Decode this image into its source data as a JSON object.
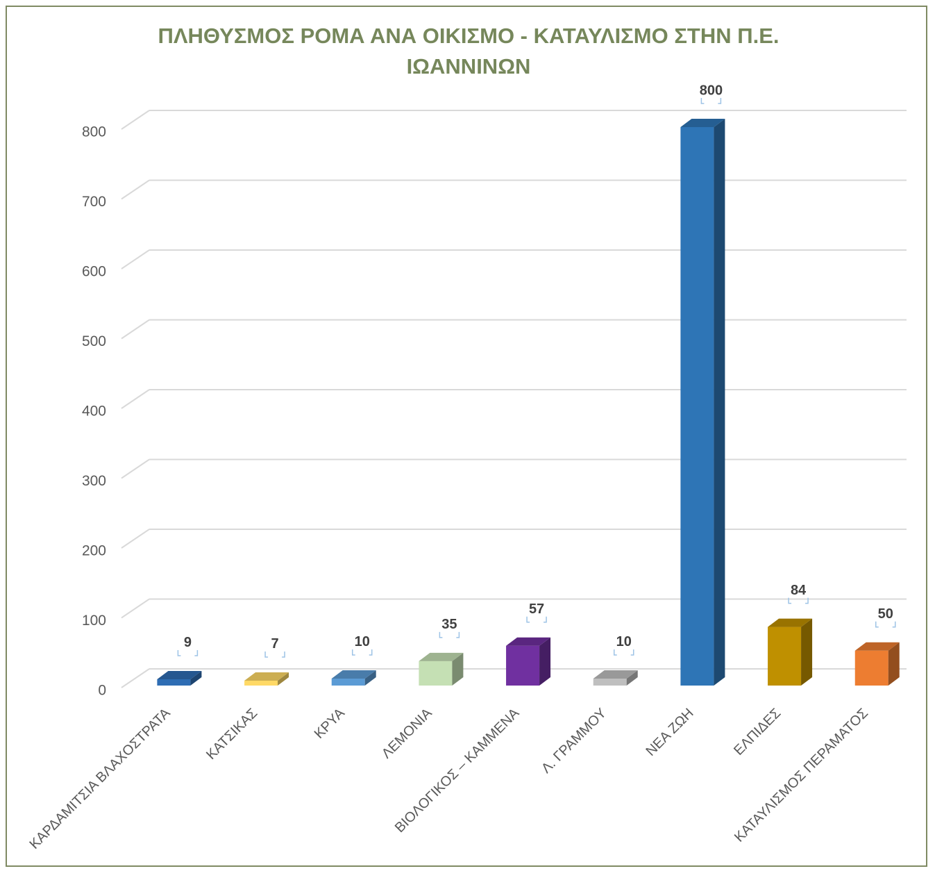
{
  "chart_data": {
    "type": "bar3d",
    "title": "ΠΛΗΘΥΣΜΟΣ ΡΟΜΑ ΑΝΑ ΟΙΚΙΣΜΟ - ΚΑΤΑΥΛΙΣΜΟ ΣΤΗΝ Π.Ε. ΙΩΑΝΝΙΝΩΝ",
    "categories": [
      "ΚΑΡΔΑΜΙΤΣΙΑ ΒΛΑΧΟΣΤΡΑΤΑ",
      "ΚΑΤΣΙΚΑΣ",
      "ΚΡΥΑ",
      "ΛΕΜΟΝΙΑ",
      "ΒΙΟΛΟΓΙΚΟΣ – ΚΑΜΜΕΝΑ",
      "Λ. ΓΡΑΜΜΟΥ",
      "ΝΕΑ ΖΩΗ",
      "ΕΛΠΙΔΕΣ",
      "ΚΑΤΑΥΛΙΣΜΟΣ ΠΕΡΑΜΑΤΟΣ"
    ],
    "values": [
      9,
      7,
      10,
      35,
      57,
      10,
      800,
      84,
      50
    ],
    "colors": [
      "#2e6db4",
      "#ffd966",
      "#5b9bd5",
      "#c5e0b4",
      "#7030a0",
      "#bfbfbf",
      "#2e75b6",
      "#bf9000",
      "#ed7d31"
    ],
    "ylim": [
      0,
      800
    ],
    "yticks": [
      0,
      100,
      200,
      300,
      400,
      500,
      600,
      700,
      800
    ],
    "grid": true
  }
}
